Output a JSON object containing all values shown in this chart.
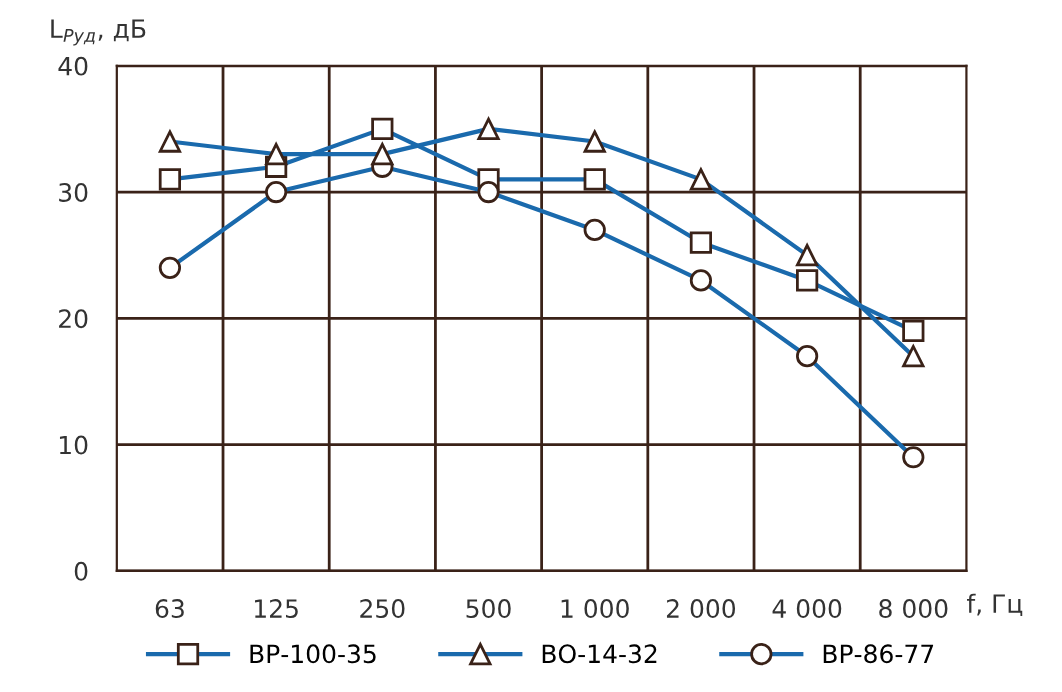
{
  "chart_data": {
    "type": "line",
    "ylabel": "L$_{Pуд}$, дБ",
    "xlabel": "f, Гц",
    "categories": [
      "63",
      "125",
      "250",
      "500",
      "1 000",
      "2 000",
      "4 000",
      "8 000"
    ],
    "series": [
      {
        "name": "ВР-100-35",
        "color": "#1a6aad",
        "marker": "square",
        "values": [
          31,
          32,
          35,
          31,
          31,
          26,
          23,
          19
        ]
      },
      {
        "name": "ВО-14-32",
        "color": "#1a6aad",
        "marker": "triangle",
        "values": [
          34,
          33,
          33,
          35,
          34,
          31,
          25,
          17
        ]
      },
      {
        "name": "ВР-86-77",
        "color": "#1a6aad",
        "marker": "circle",
        "values": [
          24,
          30,
          32,
          30,
          27,
          23,
          17,
          9
        ]
      }
    ],
    "ylim": [
      0,
      40
    ],
    "yticks": [
      0,
      10,
      20,
      30,
      40
    ],
    "grid": true,
    "legend": "bottom",
    "line_style": "solid"
  }
}
